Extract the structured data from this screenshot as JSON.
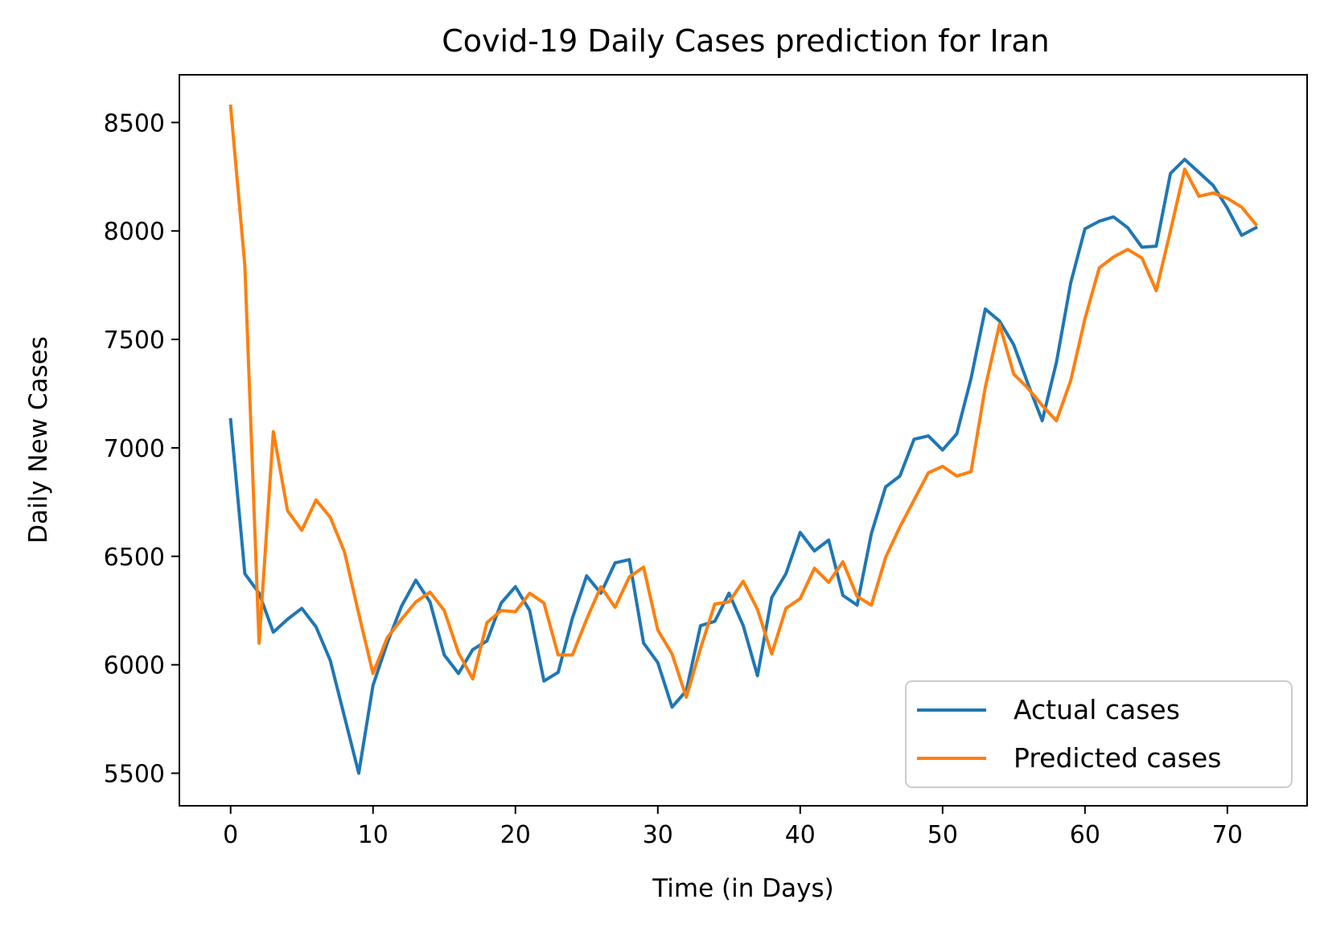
{
  "chart_data": {
    "type": "line",
    "title": "Covid-19 Daily Cases prediction for Iran",
    "xlabel": "Time (in Days)",
    "ylabel": "Daily New Cases",
    "xlim": [
      -3.6,
      75.6
    ],
    "ylim": [
      5350,
      8720
    ],
    "xticks": [
      0,
      10,
      20,
      30,
      40,
      50,
      60,
      70
    ],
    "yticks": [
      5500,
      6000,
      6500,
      7000,
      7500,
      8000,
      8500
    ],
    "grid": false,
    "legend_position": "lower-right",
    "series": [
      {
        "name": "Actual cases",
        "color": "#1f77b4",
        "values": [
          7130,
          6420,
          6330,
          6150,
          6210,
          6260,
          6175,
          6020,
          5760,
          5500,
          5905,
          6100,
          6270,
          6390,
          6290,
          6045,
          5960,
          6070,
          6110,
          6285,
          6360,
          6250,
          5925,
          5965,
          6215,
          6410,
          6330,
          6470,
          6485,
          6100,
          6010,
          5805,
          5880,
          6180,
          6200,
          6330,
          6180,
          5950,
          6310,
          6420,
          6610,
          6525,
          6575,
          6320,
          6275,
          6605,
          6820,
          6870,
          7040,
          7055,
          6990,
          7065,
          7320,
          7640,
          7585,
          7475,
          7295,
          7125,
          7395,
          7760,
          8010,
          8045,
          8065,
          8015,
          7925,
          7930,
          8265,
          8330,
          8270,
          8210,
          8105,
          7980,
          8015
        ]
      },
      {
        "name": "Predicted cases",
        "color": "#ff7f0e",
        "values": [
          8575,
          7840,
          6100,
          7075,
          6710,
          6620,
          6760,
          6680,
          6520,
          6235,
          5960,
          6125,
          6210,
          6290,
          6335,
          6250,
          6055,
          5935,
          6195,
          6250,
          6245,
          6330,
          6285,
          6045,
          6045,
          6210,
          6360,
          6265,
          6405,
          6450,
          6160,
          6050,
          5850,
          6075,
          6280,
          6290,
          6385,
          6255,
          6050,
          6260,
          6305,
          6445,
          6380,
          6475,
          6315,
          6275,
          6495,
          6635,
          6760,
          6885,
          6915,
          6870,
          6890,
          7280,
          7570,
          7340,
          7275,
          7195,
          7125,
          7310,
          7595,
          7830,
          7880,
          7915,
          7875,
          7725,
          8000,
          8285,
          8160,
          8175,
          8150,
          8110,
          8030
        ]
      }
    ]
  }
}
